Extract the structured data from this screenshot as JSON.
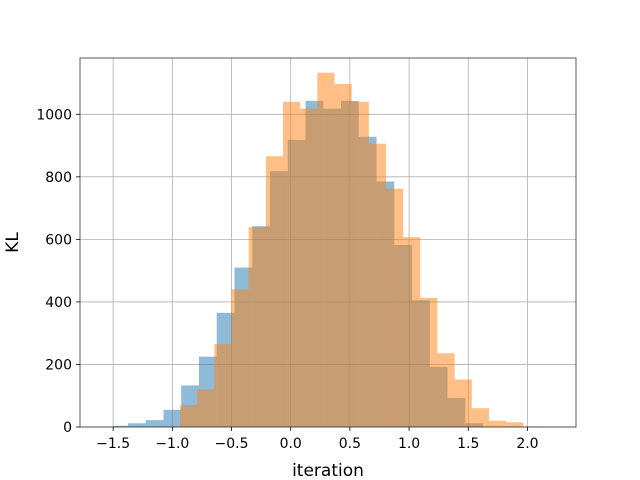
{
  "chart_data": {
    "type": "histogram",
    "title": "",
    "xlabel": "iteration",
    "ylabel": "KL",
    "xlim": [
      -1.78,
      2.41
    ],
    "ylim": [
      0,
      1180
    ],
    "xticks": [
      -1.5,
      -1.0,
      -0.5,
      0.0,
      0.5,
      1.0,
      1.5,
      2.0
    ],
    "xtick_labels": [
      "−1.5",
      "−1.0",
      "−0.5",
      "0.0",
      "0.5",
      "1.0",
      "1.5",
      "2.0"
    ],
    "yticks": [
      0,
      200,
      400,
      600,
      800,
      1000
    ],
    "ytick_labels": [
      "0",
      "200",
      "400",
      "600",
      "800",
      "1000"
    ],
    "grid": true,
    "legend": false,
    "series": [
      {
        "color": "#1f77b4",
        "opacity": 0.5,
        "bin_edges": [
          -1.5,
          -1.375,
          -1.225,
          -1.075,
          -0.925,
          -0.775,
          -0.625,
          -0.475,
          -0.325,
          -0.175,
          -0.025,
          0.125,
          0.275,
          0.425,
          0.575,
          0.725,
          0.875,
          1.025,
          1.175,
          1.325,
          1.475,
          1.625
        ],
        "counts": [
          4,
          12,
          22,
          55,
          133,
          225,
          365,
          510,
          642,
          818,
          918,
          1043,
          1018,
          1043,
          928,
          785,
          582,
          405,
          192,
          93,
          12
        ]
      },
      {
        "color": "#ff7f0e",
        "opacity": 0.5,
        "bin_edges": [
          -1.08,
          -0.935,
          -0.79,
          -0.645,
          -0.5,
          -0.355,
          -0.21,
          -0.065,
          0.08,
          0.225,
          0.37,
          0.515,
          0.66,
          0.805,
          0.95,
          1.095,
          1.24,
          1.385,
          1.53,
          1.675,
          1.82,
          1.965,
          2.11
        ],
        "counts": [
          2,
          70,
          120,
          265,
          440,
          640,
          866,
          1040,
          1018,
          1133,
          1097,
          1040,
          906,
          762,
          607,
          413,
          236,
          152,
          60,
          20,
          15,
          2
        ]
      }
    ]
  }
}
